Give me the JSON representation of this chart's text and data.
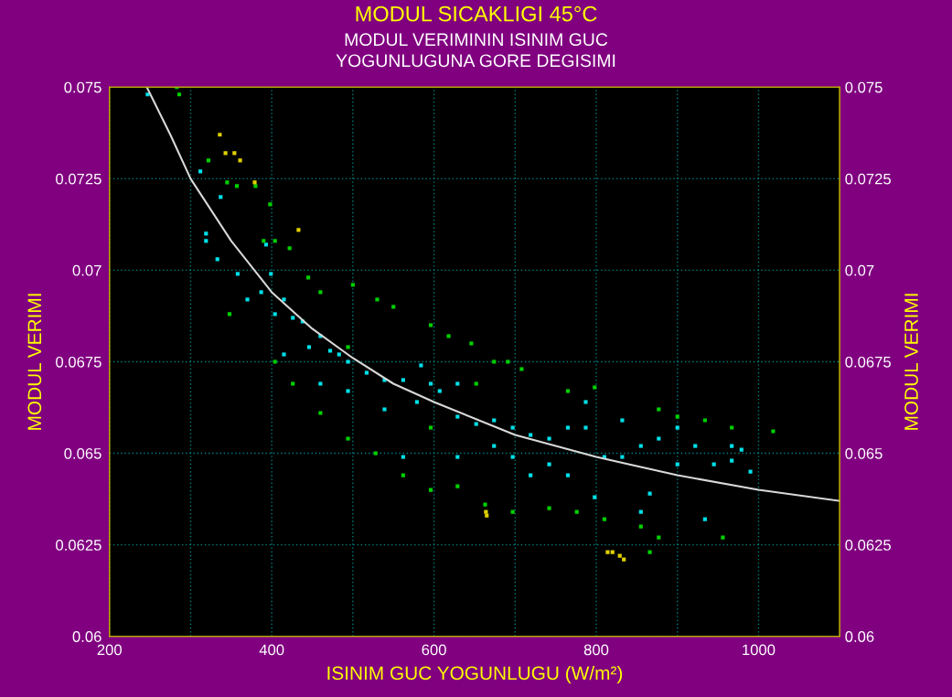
{
  "chart_data": {
    "type": "scatter",
    "title": "MODUL SICAKLIGI 45°C",
    "subtitle": "MODUL VERIMININ ISINIM GUC\nYOGUNLUGUNA GORE DEGISIMI",
    "xlabel": "ISINIM GUC YOGUNLUGU (W/m²)",
    "ylabel": "MODUL VERIMI",
    "y2label": "MODUL VERIMI",
    "xlim": [
      200,
      1100
    ],
    "xticks": [
      200,
      {
        "value": 300,
        "label": null
      },
      400,
      {
        "value": 500,
        "label": null
      },
      600,
      {
        "value": 700,
        "label": null
      },
      800,
      {
        "value": 900,
        "label": null
      },
      1000
    ],
    "ylim": [
      0.06,
      0.075
    ],
    "yticks": [
      0.06,
      0.0625,
      0.065,
      0.0675,
      0.07,
      0.0725,
      0.075
    ],
    "y2lim": [
      0.06,
      0.075
    ],
    "y2ticks": [
      0.06,
      0.0625,
      0.065,
      0.0675,
      0.07,
      0.0725,
      0.075
    ],
    "grid": true,
    "marker": "square",
    "legend": false,
    "series": [
      {
        "color": "#00e0e8",
        "x": [
          247,
          312,
          337,
          319,
          319,
          333,
          358,
          393,
          387,
          404,
          399,
          415,
          426,
          438,
          446,
          460,
          472,
          483,
          494,
          517,
          539,
          562,
          584,
          596,
          607,
          629,
          652,
          674,
          697,
          719,
          742,
          765,
          787,
          810,
          832,
          855,
          877,
          900,
          922,
          945,
          967,
          990,
          967,
          979,
          579,
          629,
          719,
          765,
          855,
          934,
          866,
          415,
          460,
          539,
          674,
          798,
          562,
          494,
          370,
          697,
          742,
          787,
          832,
          900,
          629
        ],
        "values": [
          0.0748,
          0.0727,
          0.072,
          0.071,
          0.0708,
          0.0703,
          0.0699,
          0.0707,
          0.0694,
          0.0688,
          0.0699,
          0.0692,
          0.0687,
          0.0686,
          0.0679,
          0.0682,
          0.0678,
          0.0677,
          0.0675,
          0.0672,
          0.067,
          0.067,
          0.0674,
          0.0669,
          0.0667,
          0.066,
          0.0658,
          0.0659,
          0.0657,
          0.0655,
          0.0654,
          0.0657,
          0.0657,
          0.0649,
          0.0649,
          0.0652,
          0.0654,
          0.0657,
          0.0652,
          0.0647,
          0.0648,
          0.0645,
          0.0652,
          0.0651,
          0.0664,
          0.0649,
          0.0644,
          0.0644,
          0.0634,
          0.0632,
          0.0639,
          0.0677,
          0.0669,
          0.0662,
          0.0652,
          0.0638,
          0.0649,
          0.0667,
          0.0692,
          0.0649,
          0.0647,
          0.0664,
          0.0659,
          0.0647,
          0.0669
        ]
      },
      {
        "color": "#00d000",
        "x": [
          283,
          286,
          322,
          345,
          357,
          380,
          398,
          390,
          404,
          422,
          445,
          460,
          500,
          530,
          550,
          596,
          618,
          646,
          674,
          691,
          708,
          765,
          798,
          877,
          900,
          934,
          967,
          1018,
          404,
          426,
          460,
          494,
          528,
          562,
          596,
          629,
          663,
          697,
          742,
          776,
          810,
          855,
          877,
          956,
          866,
          348,
          494,
          652,
          596
        ],
        "values": [
          0.075,
          0.0748,
          0.073,
          0.0724,
          0.0723,
          0.0723,
          0.0718,
          0.0708,
          0.0708,
          0.0706,
          0.0698,
          0.0694,
          0.0696,
          0.0692,
          0.069,
          0.0685,
          0.0682,
          0.068,
          0.0675,
          0.0675,
          0.0673,
          0.0667,
          0.0668,
          0.0662,
          0.066,
          0.0659,
          0.0657,
          0.0656,
          0.0675,
          0.0669,
          0.0661,
          0.0654,
          0.065,
          0.0644,
          0.064,
          0.0641,
          0.0636,
          0.0634,
          0.0635,
          0.0634,
          0.0632,
          0.063,
          0.0627,
          0.0627,
          0.0623,
          0.0688,
          0.0679,
          0.0669,
          0.0657
        ]
      },
      {
        "color": "#e0d000",
        "x": [
          336,
          343,
          354,
          361,
          379,
          433,
          664,
          665,
          814,
          820,
          829,
          834
        ],
        "values": [
          0.0737,
          0.0732,
          0.0732,
          0.073,
          0.0724,
          0.0711,
          0.0634,
          0.0633,
          0.0623,
          0.0623,
          0.0622,
          0.0621
        ]
      },
      {
        "type": "line",
        "marker": "none",
        "color": "#d8d8d8",
        "x": [
          246,
          275,
          300,
          350,
          400,
          450,
          500,
          550,
          600,
          700,
          800,
          900,
          1000,
          1100
        ],
        "values": [
          0.075,
          0.0737,
          0.0725,
          0.0708,
          0.0694,
          0.0684,
          0.0676,
          0.0669,
          0.0664,
          0.0655,
          0.0649,
          0.0644,
          0.064,
          0.0637
        ]
      }
    ]
  }
}
